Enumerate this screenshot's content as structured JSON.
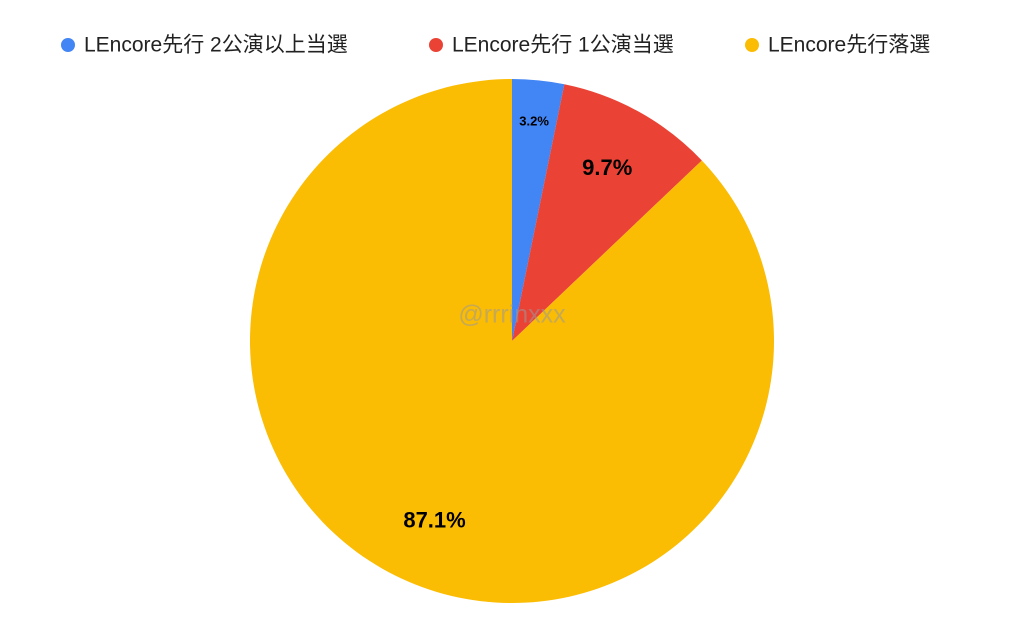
{
  "chart_data": {
    "type": "pie",
    "categories": [
      "LEncore先行 2公演以上当選",
      "LEncore先行 1公演当選",
      "LEncore先行落選"
    ],
    "values": [
      3.2,
      9.7,
      87.1
    ],
    "value_labels": [
      "3.2%",
      "9.7%",
      "87.1%"
    ],
    "colors": [
      "#4285f4",
      "#ea4335",
      "#fbbc04"
    ],
    "legend": "top",
    "watermark": "@rrrinxxx"
  }
}
